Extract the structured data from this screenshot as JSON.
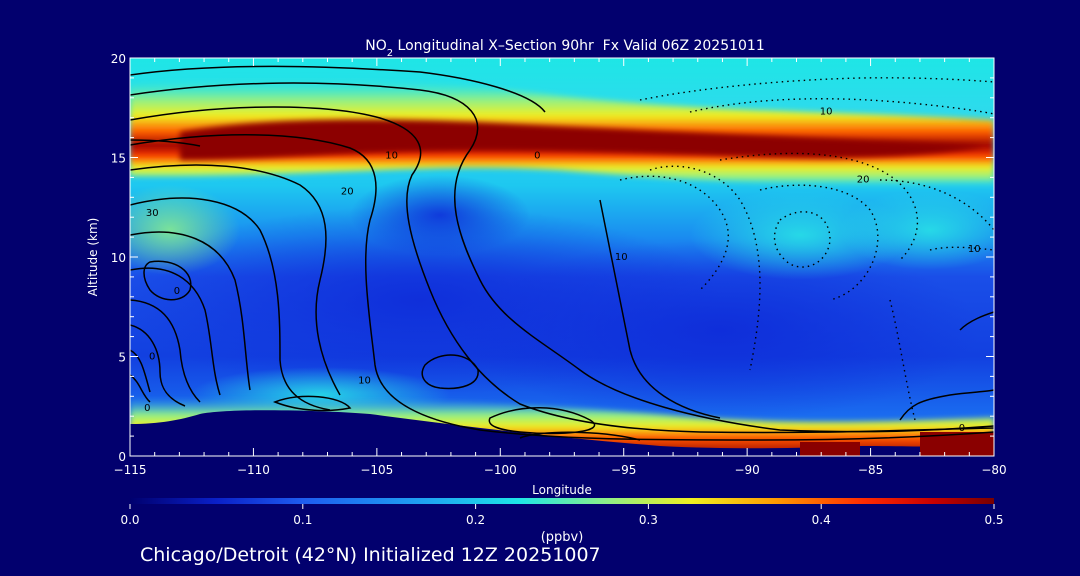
{
  "chart_data": {
    "type": "heatmap",
    "title_prefix": "NO",
    "title_subscript": "2",
    "title_rest": " Longitudinal X–Section 90hr  Fx Valid 06Z 20251011",
    "xlabel": "Longitude",
    "ylabel": "Altitude (km)",
    "xlim": [
      -115,
      -80
    ],
    "ylim": [
      0,
      20
    ],
    "x_ticks": [
      -115,
      -110,
      -105,
      -100,
      -95,
      -90,
      -85,
      -80
    ],
    "x_tick_labels": [
      "−115",
      "−110",
      "−105",
      "−100",
      "−95",
      "−90",
      "−85",
      "−80"
    ],
    "y_ticks": [
      0,
      5,
      10,
      15,
      20
    ],
    "y_tick_labels": [
      "0",
      "5",
      "10",
      "15",
      "20"
    ],
    "colorbar": {
      "label": "(ppbv)",
      "min": 0.0,
      "max": 0.5,
      "ticks": [
        0.0,
        0.1,
        0.2,
        0.3,
        0.4,
        0.5
      ],
      "tick_labels": [
        "0.0",
        "0.1",
        "0.2",
        "0.3",
        "0.4",
        "0.5"
      ],
      "colors": [
        "#00006e",
        "#0a20c8",
        "#1e5cf0",
        "#1fa8f2",
        "#1ee6e6",
        "#8cf08a",
        "#f0f020",
        "#ff9800",
        "#ff2a00",
        "#c80000",
        "#780000"
      ]
    },
    "field_features": {
      "stratospheric_band": {
        "peak_value": 0.5,
        "altitude_km": [
          14,
          18.5
        ],
        "longitude_range": [
          -115,
          -80
        ]
      },
      "boundary_layer": {
        "peak_value": 0.5,
        "altitude_km": [
          0,
          2.5
        ]
      },
      "mid_troposphere_min": {
        "value": 0.08,
        "altitude_km": [
          3,
          12
        ]
      }
    },
    "contour_labels": [
      {
        "text": "10",
        "lon": -104.4,
        "alt": 15.1
      },
      {
        "text": "0",
        "lon": -98.5,
        "alt": 15.1
      },
      {
        "text": "20",
        "lon": -106.2,
        "alt": 13.3
      },
      {
        "text": "30",
        "lon": -114.1,
        "alt": 12.2
      },
      {
        "text": "10",
        "lon": -86.8,
        "alt": 17.3
      },
      {
        "text": "20",
        "lon": -85.3,
        "alt": 13.9
      },
      {
        "text": "10",
        "lon": -95.1,
        "alt": 10.0
      },
      {
        "text": "10",
        "lon": -80.8,
        "alt": 10.4
      },
      {
        "text": "0",
        "lon": -113.1,
        "alt": 8.3
      },
      {
        "text": "0",
        "lon": -114.1,
        "alt": 5.0
      },
      {
        "text": "0",
        "lon": -114.3,
        "alt": 2.4
      },
      {
        "text": "10",
        "lon": -105.5,
        "alt": 3.8
      },
      {
        "text": "0",
        "lon": -81.3,
        "alt": 1.4
      }
    ]
  },
  "footer": {
    "caption": "Chicago/Detroit (42°N) Initialized 12Z 20251007"
  }
}
